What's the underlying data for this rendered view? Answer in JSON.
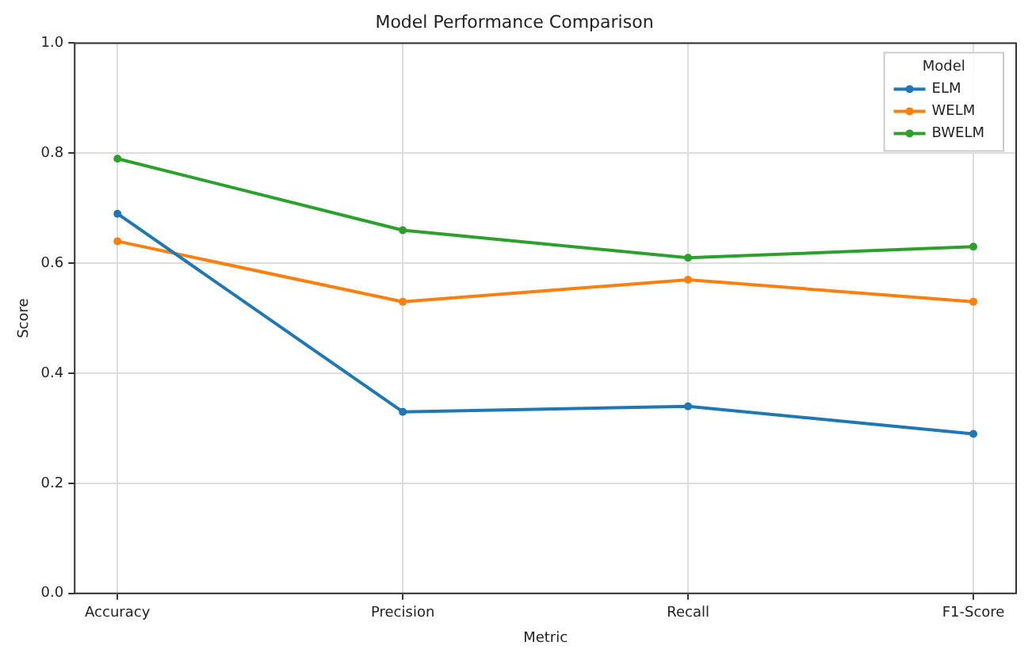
{
  "chart_data": {
    "type": "line",
    "title": "Model Performance Comparison",
    "xlabel": "Metric",
    "ylabel": "Score",
    "legend_title": "Model",
    "categories": [
      "Accuracy",
      "Precision",
      "Recall",
      "F1-Score"
    ],
    "series": [
      {
        "name": "ELM",
        "color": "#1f77b4",
        "values": [
          0.69,
          0.33,
          0.34,
          0.29
        ]
      },
      {
        "name": "WELM",
        "color": "#ff7f0e",
        "values": [
          0.64,
          0.53,
          0.57,
          0.53
        ]
      },
      {
        "name": "BWELM",
        "color": "#2ca02c",
        "values": [
          0.79,
          0.66,
          0.61,
          0.63
        ]
      }
    ],
    "ylim": [
      0,
      1
    ],
    "yticks": [
      {
        "value": 0,
        "label": "0.0"
      },
      {
        "value": 0.2,
        "label": "0.2"
      },
      {
        "value": 0.4,
        "label": "0.4"
      },
      {
        "value": 0.6,
        "label": "0.6"
      },
      {
        "value": 0.8,
        "label": "0.8"
      },
      {
        "value": 1,
        "label": "1.0"
      }
    ],
    "grid": true,
    "legend": "top right",
    "marker": "circle",
    "line_style": "solid"
  }
}
